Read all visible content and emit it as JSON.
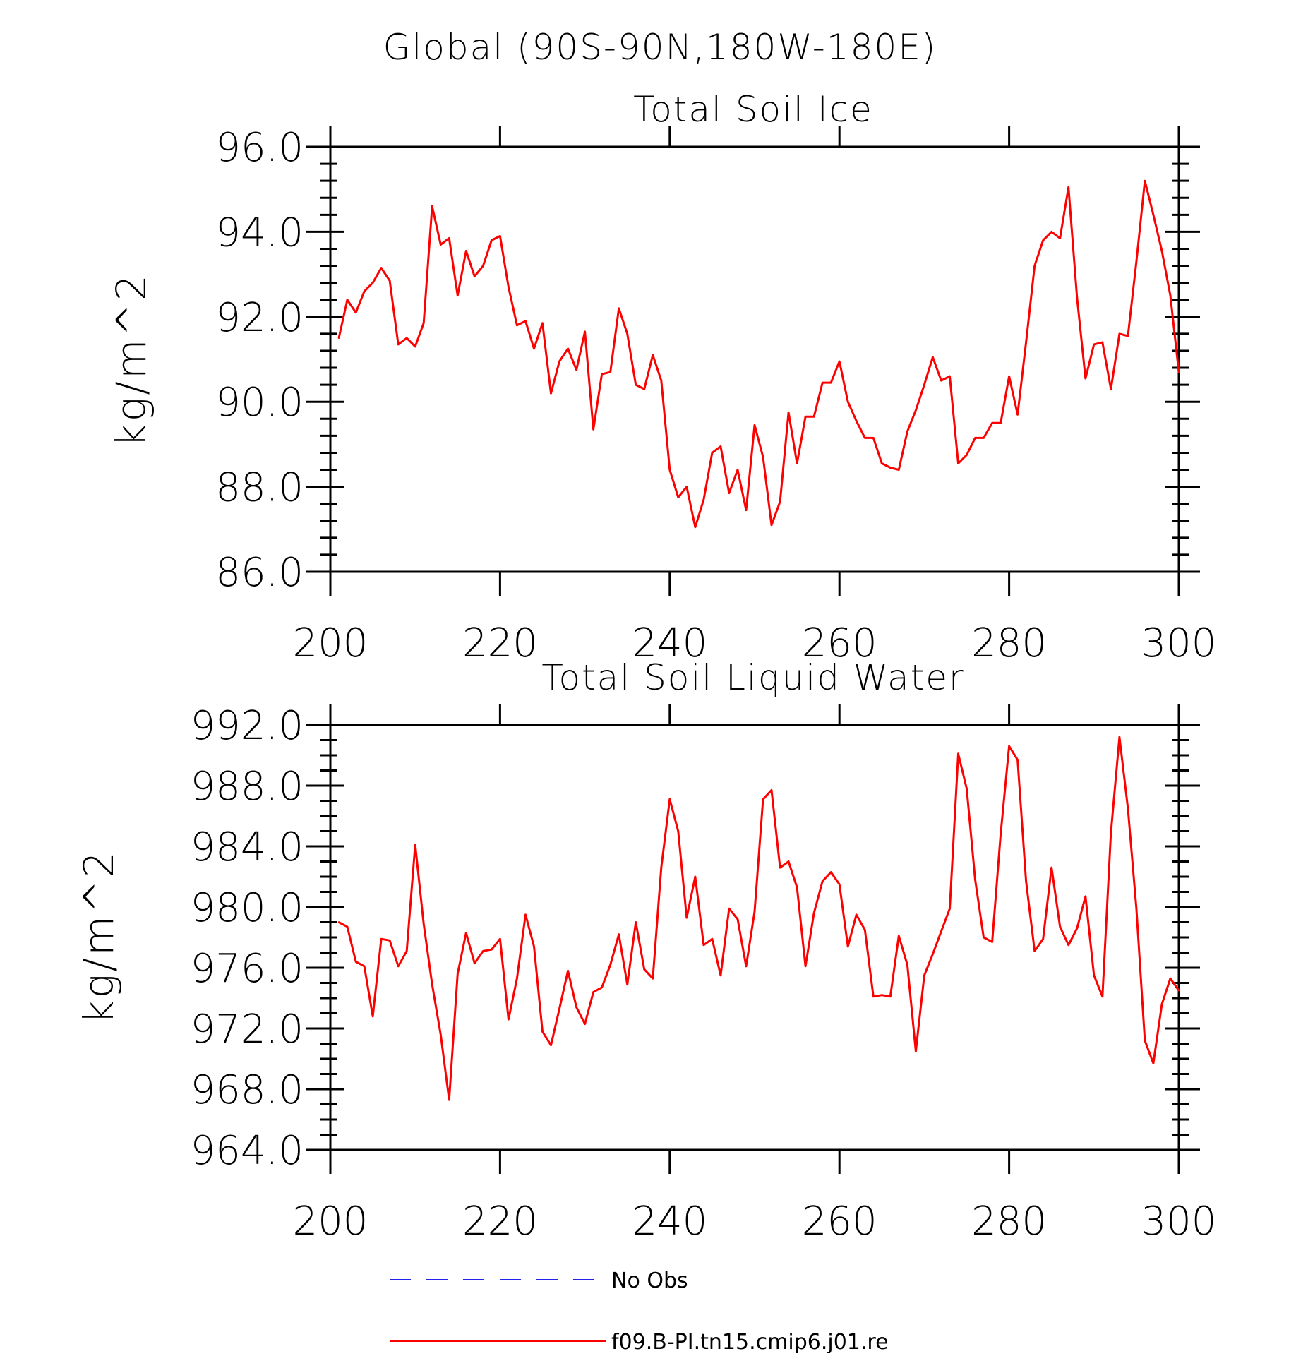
{
  "figure": {
    "title": "Global (90S-90N,180W-180E)",
    "legend": [
      {
        "label": "No Obs",
        "color": "#2222ee",
        "dash": true
      },
      {
        "label": "f09.B-PI.tn15.cmip6.j01.re",
        "color": "#ff0000",
        "dash": false
      }
    ]
  },
  "chart_data": [
    {
      "type": "line",
      "title": "Total Soil Ice",
      "xlabel": "",
      "ylabel": "kg/m^2",
      "xlim": [
        200,
        300
      ],
      "ylim": [
        86,
        96
      ],
      "x_ticks": [
        "200",
        "220",
        "240",
        "260",
        "280",
        "300"
      ],
      "y_ticks": [
        "86.0",
        "88.0",
        "90.0",
        "92.0",
        "94.0",
        "96.0"
      ],
      "grid": false,
      "series": [
        {
          "name": "f09.B-PI.tn15.cmip6.j01.re",
          "color": "#ff0000",
          "x": [
            201,
            202,
            203,
            204,
            205,
            206,
            207,
            208,
            209,
            210,
            211,
            212,
            213,
            214,
            215,
            216,
            217,
            218,
            219,
            220,
            221,
            222,
            223,
            224,
            225,
            226,
            227,
            228,
            229,
            230,
            231,
            232,
            233,
            234,
            235,
            236,
            237,
            238,
            239,
            240,
            241,
            242,
            243,
            244,
            245,
            246,
            247,
            248,
            249,
            250,
            251,
            252,
            253,
            254,
            255,
            256,
            257,
            258,
            259,
            260,
            261,
            262,
            263,
            264,
            265,
            266,
            267,
            268,
            269,
            270,
            271,
            272,
            273,
            274,
            275,
            276,
            277,
            278,
            279,
            280,
            281,
            282,
            283,
            284,
            285,
            286,
            287,
            288,
            289,
            290,
            291,
            292,
            293,
            294,
            295,
            296,
            297,
            298,
            299,
            300
          ],
          "values": [
            91.5,
            92.4,
            92.1,
            92.6,
            92.8,
            93.15,
            92.85,
            91.35,
            91.5,
            91.3,
            91.85,
            94.6,
            93.7,
            93.85,
            92.5,
            93.55,
            92.95,
            93.2,
            93.8,
            93.9,
            92.7,
            91.8,
            91.9,
            91.25,
            91.85,
            90.2,
            90.95,
            91.25,
            90.75,
            91.65,
            89.35,
            90.65,
            90.7,
            92.2,
            91.6,
            90.4,
            90.3,
            91.1,
            90.5,
            88.4,
            87.75,
            88.0,
            87.05,
            87.7,
            88.8,
            88.95,
            87.85,
            88.4,
            87.45,
            89.45,
            88.7,
            87.1,
            87.65,
            89.75,
            88.55,
            89.65,
            89.65,
            90.45,
            90.45,
            90.95,
            90.0,
            89.55,
            89.15,
            89.15,
            88.55,
            88.45,
            88.4,
            89.3,
            89.8,
            90.4,
            91.05,
            90.5,
            90.6,
            88.55,
            88.75,
            89.15,
            89.15,
            89.5,
            89.5,
            90.6,
            89.7,
            91.4,
            93.2,
            93.8,
            94.0,
            93.85,
            95.05,
            92.45,
            90.55,
            91.35,
            91.4,
            90.3,
            91.6,
            91.55,
            93.3,
            95.2,
            94.4,
            93.55,
            92.5,
            90.7
          ]
        }
      ]
    },
    {
      "type": "line",
      "title": "Total Soil Liquid Water",
      "xlabel": "",
      "ylabel": "kg/m^2",
      "xlim": [
        200,
        300
      ],
      "ylim": [
        964,
        992
      ],
      "x_ticks": [
        "200",
        "220",
        "240",
        "260",
        "280",
        "300"
      ],
      "y_ticks": [
        "964.0",
        "968.0",
        "972.0",
        "976.0",
        "980.0",
        "984.0",
        "988.0",
        "992.0"
      ],
      "grid": false,
      "series": [
        {
          "name": "f09.B-PI.tn15.cmip6.j01.re",
          "color": "#ff0000",
          "x": [
            201,
            202,
            203,
            204,
            205,
            206,
            207,
            208,
            209,
            210,
            211,
            212,
            213,
            214,
            215,
            216,
            217,
            218,
            219,
            220,
            221,
            222,
            223,
            224,
            225,
            226,
            227,
            228,
            229,
            230,
            231,
            232,
            233,
            234,
            235,
            236,
            237,
            238,
            239,
            240,
            241,
            242,
            243,
            244,
            245,
            246,
            247,
            248,
            249,
            250,
            251,
            252,
            253,
            254,
            255,
            256,
            257,
            258,
            259,
            260,
            261,
            262,
            263,
            264,
            265,
            266,
            267,
            268,
            269,
            270,
            271,
            272,
            273,
            274,
            275,
            276,
            277,
            278,
            279,
            280,
            281,
            282,
            283,
            284,
            285,
            286,
            287,
            288,
            289,
            290,
            291,
            292,
            293,
            294,
            295,
            296,
            297,
            298,
            299,
            300
          ],
          "values": [
            979.0,
            978.7,
            976.4,
            976.1,
            972.8,
            977.9,
            977.8,
            976.1,
            977.1,
            984.1,
            978.9,
            974.9,
            971.6,
            967.3,
            975.6,
            978.3,
            976.3,
            977.1,
            977.2,
            977.9,
            972.6,
            975.3,
            979.5,
            977.4,
            971.8,
            970.9,
            973.3,
            975.8,
            973.4,
            972.3,
            974.4,
            974.7,
            976.2,
            978.2,
            974.9,
            979.0,
            975.9,
            975.3,
            982.6,
            987.1,
            985.0,
            979.3,
            982.0,
            977.5,
            977.9,
            975.5,
            979.9,
            979.2,
            976.1,
            979.7,
            987.1,
            987.7,
            982.6,
            983.0,
            981.3,
            976.1,
            979.6,
            981.7,
            982.3,
            981.5,
            977.4,
            979.5,
            978.5,
            974.1,
            974.2,
            974.1,
            978.1,
            976.2,
            970.5,
            975.5,
            976.9,
            978.4,
            979.9,
            990.1,
            987.8,
            981.8,
            978.0,
            977.7,
            984.8,
            990.6,
            989.7,
            981.7,
            977.1,
            977.9,
            982.6,
            978.7,
            977.5,
            978.6,
            980.7,
            975.5,
            974.1,
            984.9,
            991.2,
            986.5,
            979.9,
            971.2,
            969.7,
            973.6,
            975.3,
            974.5
          ]
        }
      ]
    }
  ]
}
